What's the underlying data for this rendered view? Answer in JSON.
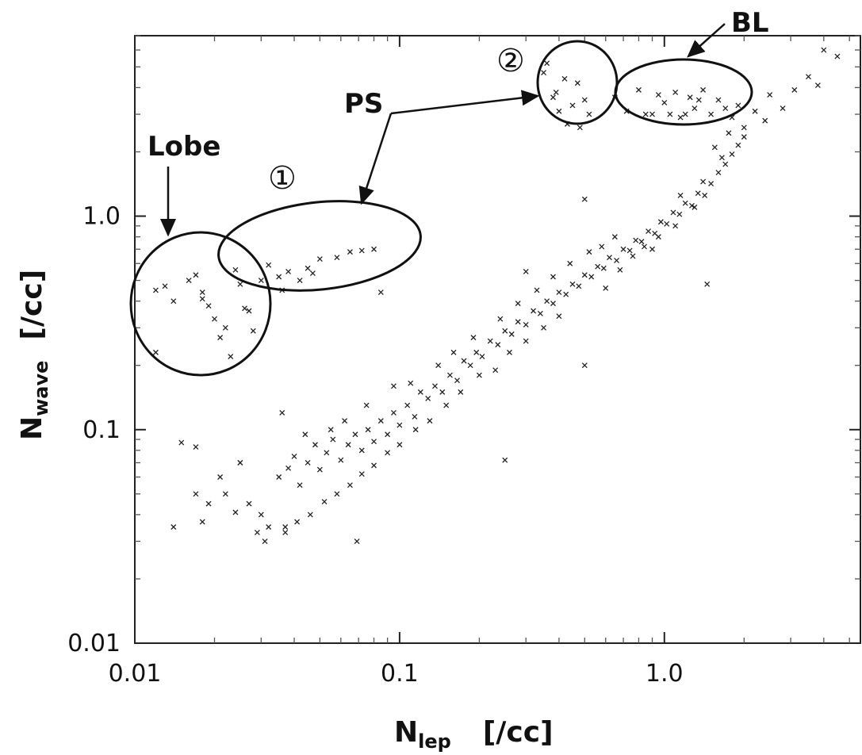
{
  "chart_data": {
    "type": "scatter",
    "title": "",
    "xlabel": "N",
    "xlabel_sub": "lep",
    "xlabel_unit": "[/cc]",
    "ylabel": "N",
    "ylabel_sub": "wave",
    "ylabel_unit": "[/cc]",
    "x_scale": "log",
    "y_scale": "log",
    "xlim": [
      0.01,
      5.5
    ],
    "ylim": [
      0.01,
      7.0
    ],
    "grid": false,
    "xticks": [
      "0.01",
      "0.1",
      "1.0"
    ],
    "yticks": [
      "0.01",
      "0.1",
      "1.0"
    ],
    "annotations": [
      "Lobe",
      "①",
      "PS",
      "②",
      "BL"
    ],
    "regions": [
      {
        "label": "Lobe",
        "x_range": [
          0.011,
          0.03
        ],
        "y_range": [
          0.19,
          0.6
        ]
      },
      {
        "label": "①",
        "x_range": [
          0.025,
          0.1
        ],
        "y_range": [
          0.4,
          0.75
        ]
      },
      {
        "label": "②",
        "x_range": [
          0.33,
          0.55
        ],
        "y_range": [
          2.4,
          6.5
        ]
      },
      {
        "label": "BL",
        "x_range": [
          0.6,
          2.0
        ],
        "y_range": [
          2.5,
          5.0
        ]
      }
    ],
    "series": [
      {
        "points": [
          [
            0.012,
            0.45
          ],
          [
            0.013,
            0.47
          ],
          [
            0.014,
            0.4
          ],
          [
            0.017,
            0.53
          ],
          [
            0.018,
            0.41
          ],
          [
            0.016,
            0.5
          ],
          [
            0.019,
            0.38
          ],
          [
            0.02,
            0.33
          ],
          [
            0.022,
            0.3
          ],
          [
            0.027,
            0.36
          ],
          [
            0.021,
            0.27
          ],
          [
            0.023,
            0.22
          ],
          [
            0.025,
            0.48
          ],
          [
            0.026,
            0.37
          ],
          [
            0.028,
            0.29
          ],
          [
            0.024,
            0.56
          ],
          [
            0.012,
            0.23
          ],
          [
            0.018,
            0.44
          ],
          [
            0.03,
            0.5
          ],
          [
            0.032,
            0.59
          ],
          [
            0.035,
            0.52
          ],
          [
            0.038,
            0.55
          ],
          [
            0.042,
            0.5
          ],
          [
            0.045,
            0.57
          ],
          [
            0.05,
            0.63
          ],
          [
            0.058,
            0.64
          ],
          [
            0.065,
            0.68
          ],
          [
            0.072,
            0.69
          ],
          [
            0.08,
            0.7
          ],
          [
            0.085,
            0.44
          ],
          [
            0.047,
            0.54
          ],
          [
            0.036,
            0.45
          ],
          [
            0.36,
            5.2
          ],
          [
            0.38,
            3.6
          ],
          [
            0.4,
            3.1
          ],
          [
            0.43,
            2.7
          ],
          [
            0.47,
            4.2
          ],
          [
            0.5,
            3.5
          ],
          [
            0.35,
            4.7
          ],
          [
            0.42,
            4.4
          ],
          [
            0.48,
            2.6
          ],
          [
            0.52,
            3.0
          ],
          [
            0.39,
            3.8
          ],
          [
            0.45,
            3.3
          ],
          [
            0.65,
            3.6
          ],
          [
            0.72,
            3.1
          ],
          [
            0.8,
            3.9
          ],
          [
            0.9,
            3.0
          ],
          [
            1.0,
            3.4
          ],
          [
            1.1,
            3.8
          ],
          [
            1.2,
            3.0
          ],
          [
            1.3,
            3.2
          ],
          [
            1.4,
            3.9
          ],
          [
            1.5,
            3.0
          ],
          [
            1.6,
            3.5
          ],
          [
            1.7,
            3.2
          ],
          [
            1.8,
            2.9
          ],
          [
            1.9,
            3.3
          ],
          [
            0.85,
            3.0
          ],
          [
            1.05,
            3.0
          ],
          [
            1.25,
            3.6
          ],
          [
            0.95,
            3.7
          ],
          [
            1.15,
            2.9
          ],
          [
            1.35,
            3.5
          ],
          [
            2.2,
            3.1
          ],
          [
            2.5,
            3.7
          ],
          [
            2.8,
            3.2
          ],
          [
            3.1,
            3.9
          ],
          [
            3.5,
            4.5
          ],
          [
            4.0,
            6.0
          ],
          [
            4.5,
            5.6
          ],
          [
            3.8,
            4.1
          ],
          [
            2.0,
            2.6
          ],
          [
            2.4,
            2.8
          ],
          [
            0.015,
            0.087
          ],
          [
            0.017,
            0.083
          ],
          [
            0.025,
            0.07
          ],
          [
            0.021,
            0.06
          ],
          [
            0.017,
            0.05
          ],
          [
            0.019,
            0.045
          ],
          [
            0.022,
            0.05
          ],
          [
            0.018,
            0.037
          ],
          [
            0.014,
            0.035
          ],
          [
            0.024,
            0.041
          ],
          [
            0.027,
            0.045
          ],
          [
            0.03,
            0.04
          ],
          [
            0.032,
            0.035
          ],
          [
            0.029,
            0.033
          ],
          [
            0.031,
            0.03
          ],
          [
            0.025,
            0.07
          ],
          [
            0.069,
            0.03
          ],
          [
            0.037,
            0.033
          ],
          [
            0.036,
            0.12
          ],
          [
            0.25,
            0.072
          ],
          [
            0.5,
            0.2
          ],
          [
            1.45,
            0.48
          ],
          [
            0.3,
            0.55
          ],
          [
            0.5,
            1.2
          ],
          [
            0.035,
            0.06
          ],
          [
            0.038,
            0.066
          ],
          [
            0.04,
            0.075
          ],
          [
            0.042,
            0.055
          ],
          [
            0.045,
            0.07
          ],
          [
            0.048,
            0.085
          ],
          [
            0.05,
            0.065
          ],
          [
            0.053,
            0.078
          ],
          [
            0.056,
            0.09
          ],
          [
            0.06,
            0.072
          ],
          [
            0.064,
            0.085
          ],
          [
            0.068,
            0.095
          ],
          [
            0.072,
            0.08
          ],
          [
            0.076,
            0.1
          ],
          [
            0.08,
            0.088
          ],
          [
            0.085,
            0.11
          ],
          [
            0.09,
            0.095
          ],
          [
            0.095,
            0.12
          ],
          [
            0.1,
            0.105
          ],
          [
            0.107,
            0.13
          ],
          [
            0.114,
            0.115
          ],
          [
            0.12,
            0.15
          ],
          [
            0.128,
            0.14
          ],
          [
            0.136,
            0.16
          ],
          [
            0.145,
            0.15
          ],
          [
            0.155,
            0.18
          ],
          [
            0.165,
            0.17
          ],
          [
            0.175,
            0.21
          ],
          [
            0.185,
            0.2
          ],
          [
            0.195,
            0.23
          ],
          [
            0.205,
            0.22
          ],
          [
            0.22,
            0.26
          ],
          [
            0.235,
            0.25
          ],
          [
            0.25,
            0.29
          ],
          [
            0.265,
            0.28
          ],
          [
            0.28,
            0.32
          ],
          [
            0.3,
            0.31
          ],
          [
            0.32,
            0.36
          ],
          [
            0.34,
            0.35
          ],
          [
            0.36,
            0.4
          ],
          [
            0.38,
            0.39
          ],
          [
            0.4,
            0.44
          ],
          [
            0.425,
            0.43
          ],
          [
            0.45,
            0.48
          ],
          [
            0.475,
            0.47
          ],
          [
            0.5,
            0.53
          ],
          [
            0.53,
            0.52
          ],
          [
            0.56,
            0.58
          ],
          [
            0.59,
            0.57
          ],
          [
            0.62,
            0.64
          ],
          [
            0.66,
            0.62
          ],
          [
            0.7,
            0.7
          ],
          [
            0.74,
            0.69
          ],
          [
            0.78,
            0.77
          ],
          [
            0.82,
            0.76
          ],
          [
            0.87,
            0.85
          ],
          [
            0.92,
            0.83
          ],
          [
            0.97,
            0.94
          ],
          [
            1.02,
            0.92
          ],
          [
            1.08,
            1.04
          ],
          [
            1.14,
            1.02
          ],
          [
            1.2,
            1.15
          ],
          [
            1.27,
            1.12
          ],
          [
            1.34,
            1.28
          ],
          [
            1.42,
            1.25
          ],
          [
            1.5,
            1.42
          ],
          [
            1.6,
            1.6
          ],
          [
            1.7,
            1.75
          ],
          [
            1.8,
            1.95
          ],
          [
            1.9,
            2.15
          ],
          [
            2.0,
            2.35
          ],
          [
            1.65,
            1.88
          ],
          [
            1.55,
            2.1
          ],
          [
            1.75,
            2.45
          ],
          [
            0.6,
            0.46
          ],
          [
            0.68,
            0.56
          ],
          [
            0.76,
            0.65
          ],
          [
            0.84,
            0.72
          ],
          [
            0.9,
            0.7
          ],
          [
            0.95,
            0.8
          ],
          [
            1.1,
            0.9
          ],
          [
            1.15,
            1.25
          ],
          [
            1.3,
            1.1
          ],
          [
            1.4,
            1.45
          ],
          [
            0.4,
            0.34
          ],
          [
            0.35,
            0.3
          ],
          [
            0.3,
            0.26
          ],
          [
            0.26,
            0.23
          ],
          [
            0.23,
            0.19
          ],
          [
            0.2,
            0.18
          ],
          [
            0.17,
            0.15
          ],
          [
            0.15,
            0.13
          ],
          [
            0.13,
            0.11
          ],
          [
            0.115,
            0.1
          ],
          [
            0.1,
            0.085
          ],
          [
            0.09,
            0.078
          ],
          [
            0.08,
            0.068
          ],
          [
            0.072,
            0.062
          ],
          [
            0.065,
            0.055
          ],
          [
            0.058,
            0.05
          ],
          [
            0.052,
            0.046
          ],
          [
            0.046,
            0.04
          ],
          [
            0.041,
            0.037
          ],
          [
            0.037,
            0.035
          ],
          [
            0.044,
            0.095
          ],
          [
            0.055,
            0.1
          ],
          [
            0.062,
            0.11
          ],
          [
            0.075,
            0.13
          ],
          [
            0.095,
            0.16
          ],
          [
            0.11,
            0.165
          ],
          [
            0.14,
            0.2
          ],
          [
            0.16,
            0.23
          ],
          [
            0.19,
            0.27
          ],
          [
            0.24,
            0.33
          ],
          [
            0.28,
            0.39
          ],
          [
            0.33,
            0.45
          ],
          [
            0.38,
            0.52
          ],
          [
            0.44,
            0.6
          ],
          [
            0.52,
            0.68
          ],
          [
            0.58,
            0.72
          ],
          [
            0.65,
            0.8
          ]
        ]
      }
    ]
  }
}
